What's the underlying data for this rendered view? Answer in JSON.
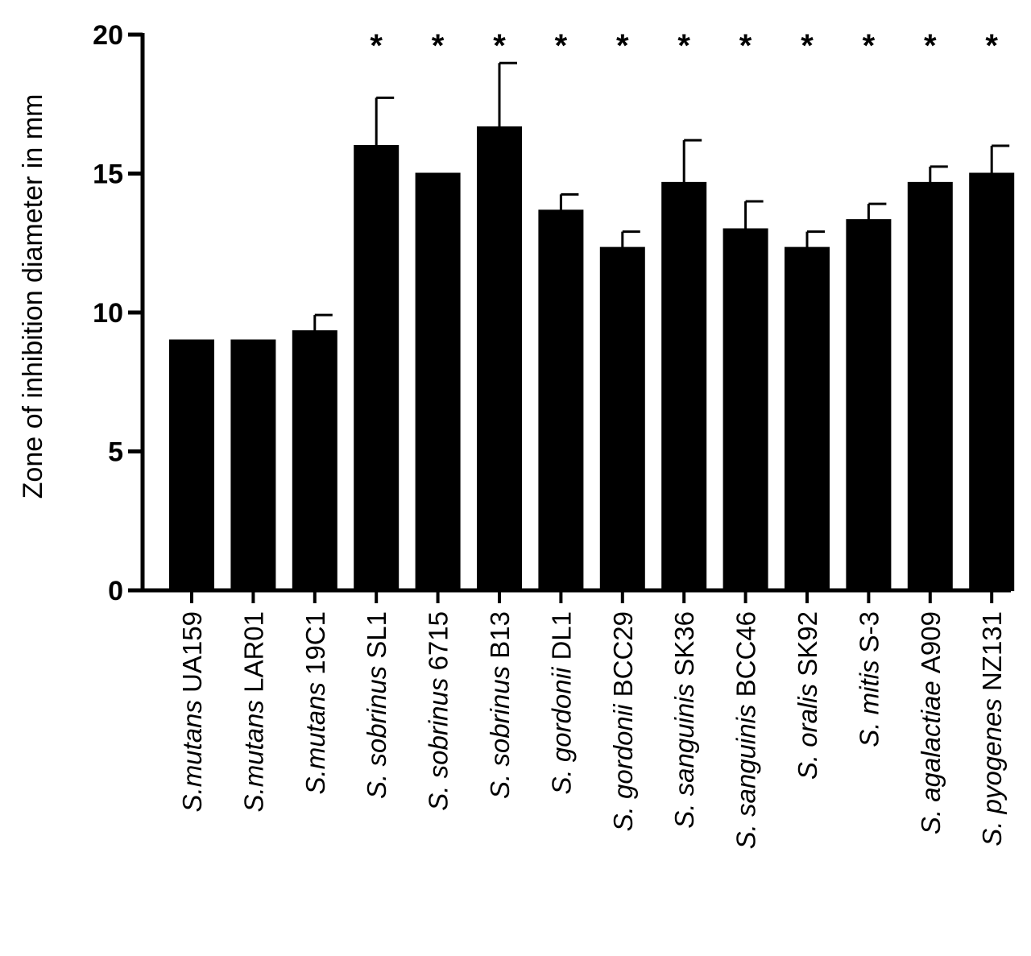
{
  "chart_data": {
    "type": "bar",
    "title": "",
    "xlabel": "",
    "ylabel": "Zone of inhibition diameter in mm",
    "ylim": [
      0,
      20
    ],
    "yticks": [
      0,
      5,
      10,
      15,
      20
    ],
    "grid": false,
    "legend": "none",
    "bar_color": "#000000",
    "categories": [
      {
        "italic": "S.mutans",
        "strain": " UA159"
      },
      {
        "italic": "S.mutans",
        "strain": " LAR01"
      },
      {
        "italic": "S.mutans",
        "strain": " 19C1"
      },
      {
        "italic": "S. sobrinus",
        "strain": " SL1"
      },
      {
        "italic": "S. sobrinus",
        "strain": " 6715"
      },
      {
        "italic": "S. sobrinus",
        "strain": " B13"
      },
      {
        "italic": "S. gordonii",
        "strain": " DL1"
      },
      {
        "italic": "S. gordonii",
        "strain": " BCC29"
      },
      {
        "italic": "S. sanguinis",
        "strain": " SK36"
      },
      {
        "italic": "S. sanguinis",
        "strain": " BCC46"
      },
      {
        "italic": "S. oralis",
        "strain": " SK92"
      },
      {
        "italic": "S. mitis",
        "strain": " S-3"
      },
      {
        "italic": "S. agalactiae",
        "strain": " A909"
      },
      {
        "italic": "S. pyogenes",
        "strain": " NZ131"
      }
    ],
    "values": [
      9,
      9,
      9.33,
      16,
      15,
      16.67,
      13.67,
      12.33,
      14.67,
      13,
      12.33,
      13.33,
      14.67,
      15
    ],
    "errors": [
      0,
      0,
      0.58,
      1.73,
      0,
      2.31,
      0.58,
      0.58,
      1.53,
      1,
      0.58,
      0.58,
      0.58,
      1
    ],
    "significance": [
      "",
      "",
      "",
      "*",
      "*",
      "*",
      "*",
      "*",
      "*",
      "*",
      "*",
      "*",
      "*",
      "*"
    ]
  }
}
